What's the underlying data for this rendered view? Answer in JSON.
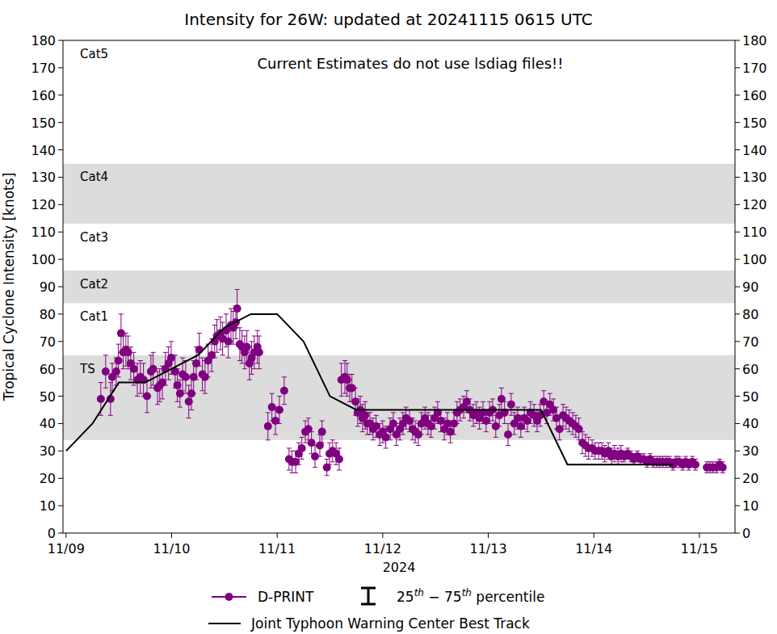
{
  "chart_data": {
    "type": "scatter",
    "title": "Intensity for 26W: updated at 20241115 0615 UTC",
    "annotation": "Current Estimates do not use lsdiag files!!",
    "x_label": "2024",
    "y_label": "Tropical Cyclone Intensity [knots]",
    "xlim": [
      -0.7,
      152.1
    ],
    "xticks": [
      {
        "value": 0,
        "label": "11/09"
      },
      {
        "value": 24,
        "label": "11/10"
      },
      {
        "value": 48,
        "label": "11/11"
      },
      {
        "value": 72,
        "label": "11/12"
      },
      {
        "value": 96,
        "label": "11/13"
      },
      {
        "value": 120,
        "label": "11/14"
      },
      {
        "value": 144,
        "label": "11/15"
      }
    ],
    "ylim": [
      0,
      180
    ],
    "yticks": [
      0,
      10,
      20,
      30,
      40,
      50,
      60,
      70,
      80,
      90,
      100,
      110,
      120,
      130,
      140,
      150,
      160,
      170,
      180
    ],
    "grid": false,
    "legend": "bottom",
    "bands": [
      {
        "label": "TS",
        "lower": 34,
        "upper": 65,
        "shaded": true
      },
      {
        "label": "Cat1",
        "lower": 65,
        "upper": 84,
        "shaded": false
      },
      {
        "label": "Cat2",
        "lower": 84,
        "upper": 96,
        "shaded": true
      },
      {
        "label": "Cat3",
        "lower": 96,
        "upper": 113,
        "shaded": false
      },
      {
        "label": "Cat4",
        "lower": 113,
        "upper": 135,
        "shaded": true
      },
      {
        "label": "Cat5",
        "lower": 135,
        "upper": 180,
        "shaded": false
      }
    ],
    "series": [
      {
        "name": "D-PRINT",
        "type": "scatter",
        "color": "#800080",
        "marker": "circle",
        "line_style": "none",
        "error_name": "25th − 75th percentile",
        "x": [
          7.9,
          9.0,
          10.1,
          10.5,
          11.4,
          11.9,
          12.5,
          13.0,
          13.6,
          14.1,
          14.7,
          15.4,
          16.2,
          16.9,
          17.6,
          18.4,
          19.3,
          19.8,
          20.8,
          21.3,
          21.9,
          22.6,
          23.3,
          23.9,
          24.8,
          25.3,
          25.9,
          26.5,
          27.2,
          27.9,
          28.5,
          29.0,
          29.6,
          30.3,
          31.0,
          31.6,
          32.3,
          33.1,
          33.8,
          34.3,
          35.1,
          35.6,
          36.4,
          36.9,
          37.5,
          38.0,
          38.6,
          38.9,
          39.5,
          40.0,
          40.6,
          41.1,
          41.7,
          42.2,
          42.8,
          43.5,
          43.9,
          45.9,
          46.8,
          47.6,
          48.5,
          49.6,
          50.7,
          51.4,
          52.2,
          52.9,
          53.6,
          54.4,
          55.1,
          55.8,
          56.6,
          57.7,
          58.2,
          59.3,
          59.9,
          60.6,
          61.4,
          62.1,
          62.6,
          63.4,
          63.9,
          64.5,
          65.0,
          65.8,
          66.3,
          66.9,
          67.4,
          68.0,
          68.5,
          69.1,
          69.8,
          70.5,
          71.3,
          72.0,
          72.7,
          73.7,
          74.4,
          75.1,
          75.9,
          76.6,
          77.3,
          78.1,
          78.8,
          79.4,
          80.1,
          80.8,
          81.6,
          82.3,
          83.0,
          83.8,
          84.5,
          85.2,
          86.0,
          86.7,
          87.4,
          88.2,
          88.9,
          89.6,
          90.4,
          91.1,
          91.8,
          92.6,
          93.3,
          94.0,
          94.8,
          95.5,
          96.3,
          97.0,
          97.7,
          98.5,
          99.0,
          99.7,
          100.5,
          101.2,
          101.9,
          102.7,
          103.4,
          104.2,
          104.9,
          105.6,
          106.4,
          107.1,
          107.8,
          108.6,
          109.3,
          110.0,
          110.8,
          111.5,
          112.2,
          113.0,
          113.7,
          114.4,
          115.2,
          115.9,
          116.6,
          117.4,
          118.1,
          118.8,
          119.6,
          120.3,
          121.1,
          121.8,
          122.5,
          123.3,
          124.0,
          124.7,
          125.5,
          126.2,
          126.9,
          127.7,
          128.4,
          129.1,
          129.9,
          130.6,
          131.3,
          132.1,
          132.8,
          133.5,
          134.3,
          135.0,
          135.7,
          136.5,
          137.2,
          138.0,
          138.7,
          139.4,
          140.2,
          140.9,
          141.6,
          142.4,
          143.1,
          145.7,
          146.4,
          147.1,
          147.9,
          148.6,
          149.3
        ],
        "values": [
          49,
          59,
          49,
          57,
          59,
          63,
          73,
          66,
          67,
          66,
          62,
          60,
          56,
          57,
          56,
          50,
          59,
          60,
          53,
          54,
          55,
          60,
          62,
          64,
          59,
          54,
          51,
          58,
          57,
          48,
          51,
          57,
          62,
          67,
          58,
          57,
          63,
          65,
          70,
          72,
          73,
          71,
          74,
          70,
          76,
          75,
          77,
          82,
          69,
          68,
          66,
          68,
          62,
          64,
          66,
          68,
          66,
          39,
          46,
          41,
          45,
          52,
          27,
          26,
          26,
          29,
          31,
          37,
          38,
          33,
          28,
          32,
          37,
          24,
          29,
          30,
          29,
          27,
          56,
          57,
          56,
          53,
          53,
          48,
          44,
          45,
          42,
          43,
          40,
          40,
          38,
          39,
          36,
          37,
          35,
          38,
          40,
          36,
          38,
          40,
          42,
          41,
          38,
          37,
          36,
          40,
          42,
          40,
          39,
          42,
          44,
          41,
          38,
          40,
          37,
          40,
          44,
          45,
          46,
          48,
          45,
          43,
          44,
          42,
          44,
          41,
          44,
          45,
          39,
          43,
          49,
          44,
          36,
          47,
          40,
          42,
          39,
          42,
          41,
          44,
          43,
          41,
          43,
          48,
          44,
          47,
          45,
          42,
          38,
          43,
          42,
          41,
          40,
          39,
          38,
          33,
          32,
          31,
          31,
          30,
          30,
          30,
          29,
          30,
          28,
          29,
          28,
          29,
          28,
          29,
          28,
          27,
          28,
          27,
          27,
          26,
          27,
          26,
          26,
          26,
          26,
          26,
          26,
          25,
          26,
          26,
          25,
          26,
          25,
          26,
          25,
          24,
          24,
          24,
          24,
          25,
          24
        ],
        "errors": [
          6,
          6,
          6,
          5,
          5,
          6,
          7,
          6,
          6,
          6,
          6,
          6,
          6,
          6,
          6,
          6,
          6,
          6,
          6,
          6,
          6,
          6,
          6,
          6,
          6,
          6,
          5,
          6,
          6,
          6,
          6,
          6,
          6,
          6,
          6,
          6,
          6,
          6,
          6,
          6,
          6,
          6,
          6,
          6,
          6,
          6,
          6,
          7,
          6,
          6,
          6,
          6,
          6,
          6,
          6,
          6,
          6,
          5,
          5,
          5,
          5,
          5,
          4,
          4,
          4,
          4,
          4,
          4,
          4,
          4,
          4,
          4,
          4,
          3,
          4,
          4,
          4,
          4,
          6,
          6,
          6,
          5,
          5,
          5,
          5,
          5,
          5,
          5,
          4,
          4,
          4,
          4,
          4,
          4,
          4,
          4,
          4,
          4,
          4,
          4,
          4,
          4,
          4,
          4,
          4,
          4,
          4,
          4,
          4,
          4,
          4,
          4,
          4,
          4,
          4,
          4,
          4,
          4,
          4,
          4,
          4,
          4,
          4,
          4,
          4,
          4,
          4,
          4,
          4,
          4,
          4,
          4,
          4,
          4,
          4,
          4,
          4,
          4,
          4,
          4,
          4,
          4,
          4,
          4,
          4,
          4,
          4,
          4,
          4,
          4,
          4,
          4,
          4,
          4,
          4,
          4,
          4,
          4,
          3,
          3,
          3,
          3,
          3,
          3,
          3,
          3,
          3,
          3,
          2,
          2,
          2,
          2,
          2,
          2,
          2,
          2,
          2,
          2,
          2,
          2,
          2,
          2,
          2,
          2,
          2,
          2,
          2,
          2,
          2,
          2,
          2,
          2,
          2,
          2,
          2,
          2,
          2
        ]
      },
      {
        "name": "Joint Typhoon Warning Center Best Track",
        "type": "line",
        "color": "#000000",
        "marker": "none",
        "line_style": "solid",
        "x": [
          0,
          6,
          12,
          18,
          24,
          30,
          36,
          42,
          48,
          54,
          60,
          66,
          72,
          78,
          84,
          90,
          96,
          102,
          108,
          114,
          120,
          126,
          132,
          138
        ],
        "values": [
          30,
          40,
          55,
          55,
          60,
          65,
          75,
          80,
          80,
          70,
          50,
          45,
          45,
          45,
          45,
          45,
          45,
          45,
          45,
          25,
          25,
          25,
          25,
          25
        ]
      }
    ]
  }
}
